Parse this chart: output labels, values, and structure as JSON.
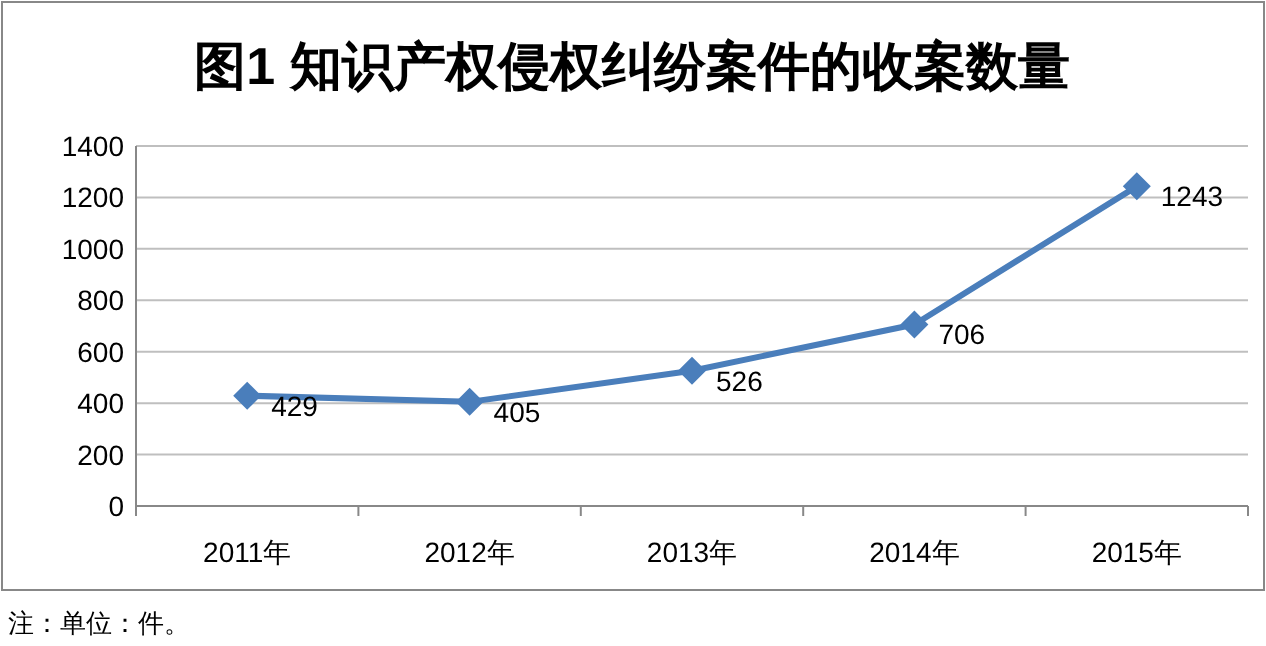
{
  "chart_data": {
    "type": "line",
    "title": "图1  知识产权侵权纠纷案件的收案数量",
    "categories": [
      "2011年",
      "2012年",
      "2013年",
      "2014年",
      "2015年"
    ],
    "series": [
      {
        "color": "#4a7ebb",
        "values": [
          429,
          405,
          526,
          706,
          1243
        ]
      }
    ],
    "ylim": [
      0,
      1400
    ],
    "yticks": [
      0,
      200,
      400,
      600,
      800,
      1000,
      1200,
      1400
    ],
    "grid": "y",
    "marker": "diamond",
    "line_style": "solid",
    "data_labels": true,
    "annotations": [
      "注：单位：件。"
    ]
  }
}
